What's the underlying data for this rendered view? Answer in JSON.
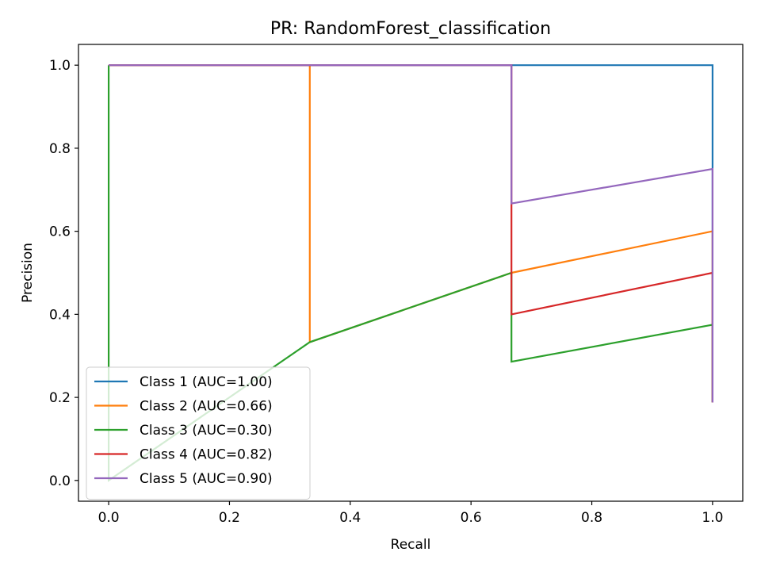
{
  "chart_data": {
    "type": "line",
    "title": "PR: RandomForest_classification",
    "xlabel": "Recall",
    "ylabel": "Precision",
    "xlim": [
      -0.05,
      1.05
    ],
    "ylim": [
      -0.05,
      1.05
    ],
    "xticks": [
      0.0,
      0.2,
      0.4,
      0.6,
      0.8,
      1.0
    ],
    "yticks": [
      0.0,
      0.2,
      0.4,
      0.6,
      0.8,
      1.0
    ],
    "xtick_labels": [
      "0.0",
      "0.2",
      "0.4",
      "0.6",
      "0.8",
      "1.0"
    ],
    "ytick_labels": [
      "0.0",
      "0.2",
      "0.4",
      "0.6",
      "0.8",
      "1.0"
    ],
    "grid": false,
    "legend_position": "lower-left",
    "series": [
      {
        "name": "Class 1 (AUC=1.00)",
        "color": "#1f77b4",
        "points": [
          [
            0,
            1
          ],
          [
            0.333,
            1
          ],
          [
            0.667,
            1
          ],
          [
            1,
            1
          ],
          [
            1,
            0.75
          ],
          [
            1,
            0.188
          ]
        ]
      },
      {
        "name": "Class 2 (AUC=0.66)",
        "color": "#ff7f0e",
        "points": [
          [
            0,
            1
          ],
          [
            0.333,
            1
          ],
          [
            0.333,
            0.333
          ],
          [
            0.667,
            0.5
          ],
          [
            1,
            0.6
          ],
          [
            1,
            0.188
          ]
        ]
      },
      {
        "name": "Class 3 (AUC=0.30)",
        "color": "#2ca02c",
        "points": [
          [
            0,
            1
          ],
          [
            0,
            0
          ],
          [
            0.333,
            0.333
          ],
          [
            0.667,
            0.5
          ],
          [
            0.667,
            0.286
          ],
          [
            1,
            0.375
          ],
          [
            1,
            0.188
          ]
        ]
      },
      {
        "name": "Class 4 (AUC=0.82)",
        "color": "#d62728",
        "points": [
          [
            0,
            1
          ],
          [
            0.333,
            1
          ],
          [
            0.667,
            1
          ],
          [
            0.667,
            0.4
          ],
          [
            1,
            0.5
          ],
          [
            1,
            0.188
          ]
        ]
      },
      {
        "name": "Class 5 (AUC=0.90)",
        "color": "#9467bd",
        "points": [
          [
            0,
            1
          ],
          [
            0.333,
            1
          ],
          [
            0.667,
            1
          ],
          [
            0.667,
            0.667
          ],
          [
            1,
            0.75
          ],
          [
            1,
            0.188
          ]
        ]
      }
    ]
  }
}
